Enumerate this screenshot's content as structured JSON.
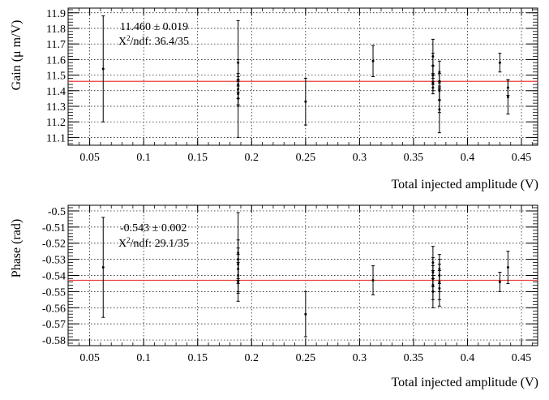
{
  "chart_data": [
    {
      "type": "scatter",
      "ylabel": "Gain (μ m/V)",
      "xlabel": "Total injected amplitude (V)",
      "xlim": [
        0.03,
        0.465
      ],
      "ylim": [
        11.05,
        11.93
      ],
      "xticks": [
        "0.05",
        "0.1",
        "0.15",
        "0.2",
        "0.25",
        "0.3",
        "0.35",
        "0.4",
        "0.45"
      ],
      "yticks": [
        "11.1",
        "11.2",
        "11.3",
        "11.4",
        "11.5",
        "11.6",
        "11.7",
        "11.8",
        "11.9"
      ],
      "grid": true,
      "fit": {
        "value": 11.46,
        "color": "#e8403c"
      },
      "stat_line1": "11.460 ± 0.019",
      "stat_x": "X",
      "stat_exp": "2",
      "stat_rest": "/ndf: 36.4/35",
      "series": [
        {
          "points": [
            {
              "x": 0.0625,
              "y": 11.54,
              "err": 0.34
            },
            {
              "x": 0.1875,
              "y": 11.58,
              "err": 0.27
            },
            {
              "x": 0.1875,
              "y": 11.47,
              "err": 0.04
            },
            {
              "x": 0.1875,
              "y": 11.44,
              "err": 0.05
            },
            {
              "x": 0.1875,
              "y": 11.41,
              "err": 0.06
            },
            {
              "x": 0.1875,
              "y": 11.38,
              "err": 0.08
            },
            {
              "x": 0.1875,
              "y": 11.35,
              "err": 0.25
            },
            {
              "x": 0.25,
              "y": 11.33,
              "err": 0.15
            },
            {
              "x": 0.3125,
              "y": 11.59,
              "err": 0.1
            },
            {
              "x": 0.368,
              "y": 11.62,
              "err": 0.11
            },
            {
              "x": 0.368,
              "y": 11.56,
              "err": 0.08
            },
            {
              "x": 0.368,
              "y": 11.5,
              "err": 0.06
            },
            {
              "x": 0.368,
              "y": 11.45,
              "err": 0.05
            },
            {
              "x": 0.368,
              "y": 11.42,
              "err": 0.04
            },
            {
              "x": 0.374,
              "y": 11.52,
              "err": 0.07
            },
            {
              "x": 0.374,
              "y": 11.46,
              "err": 0.05
            },
            {
              "x": 0.374,
              "y": 11.4,
              "err": 0.06
            },
            {
              "x": 0.374,
              "y": 11.34,
              "err": 0.08
            },
            {
              "x": 0.374,
              "y": 11.28,
              "err": 0.15
            },
            {
              "x": 0.43,
              "y": 11.58,
              "err": 0.06
            },
            {
              "x": 0.4375,
              "y": 11.42,
              "err": 0.05
            },
            {
              "x": 0.4375,
              "y": 11.36,
              "err": 0.11
            }
          ]
        }
      ]
    },
    {
      "type": "scatter",
      "ylabel": "Phase (rad)",
      "xlabel": "Total injected amplitude (V)",
      "xlim": [
        0.03,
        0.465
      ],
      "ylim": [
        -0.5835,
        -0.4965
      ],
      "xticks": [
        "0.05",
        "0.1",
        "0.15",
        "0.2",
        "0.25",
        "0.3",
        "0.35",
        "0.4",
        "0.45"
      ],
      "yticks": [
        "-0.5",
        "-0.51",
        "-0.52",
        "-0.53",
        "-0.54",
        "-0.55",
        "-0.56",
        "-0.57",
        "-0.58"
      ],
      "grid": true,
      "fit": {
        "value": -0.543,
        "color": "#e8403c"
      },
      "stat_line1": "-0.543 ± 0.002",
      "stat_x": "X",
      "stat_exp": "2",
      "stat_rest": "/ndf: 29.1/35",
      "series": [
        {
          "points": [
            {
              "x": 0.0625,
              "y": -0.535,
              "err": 0.031
            },
            {
              "x": 0.1875,
              "y": -0.526,
              "err": 0.025
            },
            {
              "x": 0.1875,
              "y": -0.53,
              "err": 0.012
            },
            {
              "x": 0.1875,
              "y": -0.533,
              "err": 0.01
            },
            {
              "x": 0.1875,
              "y": -0.536,
              "err": 0.009
            },
            {
              "x": 0.1875,
              "y": -0.54,
              "err": 0.01
            },
            {
              "x": 0.1875,
              "y": -0.544,
              "err": 0.012
            },
            {
              "x": 0.25,
              "y": -0.564,
              "err": 0.014
            },
            {
              "x": 0.3125,
              "y": -0.543,
              "err": 0.009
            },
            {
              "x": 0.368,
              "y": -0.532,
              "err": 0.01
            },
            {
              "x": 0.368,
              "y": -0.538,
              "err": 0.009
            },
            {
              "x": 0.368,
              "y": -0.542,
              "err": 0.008
            },
            {
              "x": 0.368,
              "y": -0.546,
              "err": 0.009
            },
            {
              "x": 0.368,
              "y": -0.55,
              "err": 0.01
            },
            {
              "x": 0.374,
              "y": -0.536,
              "err": 0.009
            },
            {
              "x": 0.374,
              "y": -0.54,
              "err": 0.01
            },
            {
              "x": 0.374,
              "y": -0.544,
              "err": 0.011
            },
            {
              "x": 0.374,
              "y": -0.548,
              "err": 0.011
            },
            {
              "x": 0.43,
              "y": -0.544,
              "err": 0.006
            },
            {
              "x": 0.4375,
              "y": -0.535,
              "err": 0.01
            }
          ]
        }
      ]
    }
  ]
}
